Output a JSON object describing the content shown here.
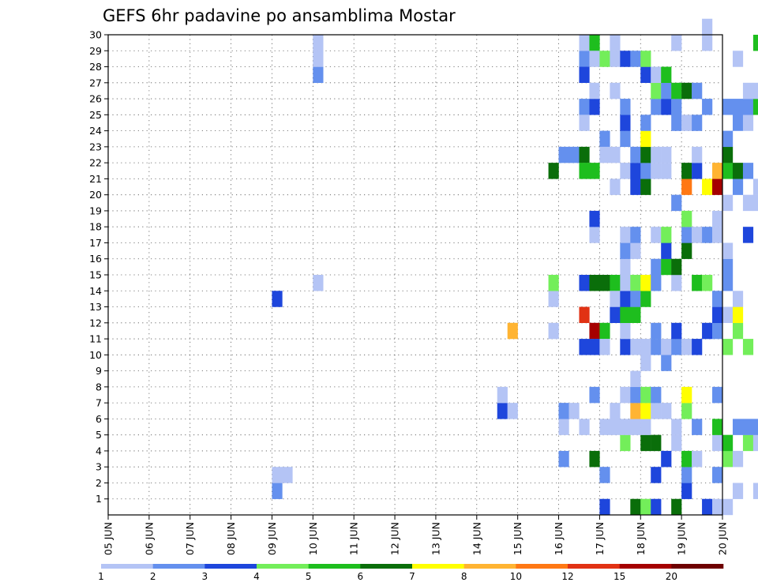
{
  "chart_data": {
    "type": "heatmap",
    "title": "GEFS 6hr padavine po ansamblima Mostar",
    "xlabel": "",
    "ylabel": "",
    "x_tick_labels": [
      "05 JUN",
      "06 JUN",
      "07 JUN",
      "08 JUN",
      "09 JUN",
      "10 JUN",
      "11 JUN",
      "12 JUN",
      "13 JUN",
      "14 JUN",
      "15 JUN",
      "16 JUN",
      "17 JUN",
      "18 JUN",
      "19 JUN",
      "20 JUN"
    ],
    "y_tick_labels": [
      "1",
      "2",
      "3",
      "4",
      "5",
      "6",
      "7",
      "8",
      "9",
      "10",
      "11",
      "12",
      "13",
      "14",
      "15",
      "16",
      "17",
      "18",
      "19",
      "20",
      "21",
      "22",
      "23",
      "24",
      "25",
      "26",
      "27",
      "28",
      "29",
      "30"
    ],
    "x_step_hours": 6,
    "ylim": [
      0,
      30
    ],
    "grid": true,
    "legend": {
      "placement": "bottom",
      "levels": [
        "1",
        "2",
        "3",
        "4",
        "5",
        "6",
        "7",
        "8",
        "10",
        "12",
        "15",
        "20"
      ],
      "colors": [
        "#b4c4f5",
        "#6490ee",
        "#1e46dc",
        "#73ee5a",
        "#1ebe1e",
        "#0a6e0a",
        "#ffff00",
        "#ffb432",
        "#ff7814",
        "#e13214",
        "#a50000",
        "#6e0000"
      ]
    },
    "cells": [
      [
        16,
        1,
        1
      ],
      [
        16,
        2,
        0
      ],
      [
        16,
        13,
        2
      ],
      [
        17,
        2,
        0
      ],
      [
        20,
        29,
        0
      ],
      [
        20,
        14,
        0
      ],
      [
        20,
        27,
        1
      ],
      [
        20,
        28,
        0
      ],
      [
        38,
        6,
        2
      ],
      [
        38,
        7,
        0
      ],
      [
        39,
        11,
        7
      ],
      [
        39,
        6,
        0
      ],
      [
        43,
        21,
        5
      ],
      [
        43,
        11,
        0
      ],
      [
        43,
        13,
        0
      ],
      [
        43,
        14,
        3
      ],
      [
        44,
        5,
        0
      ],
      [
        44,
        6,
        1
      ],
      [
        44,
        22,
        1
      ],
      [
        44,
        3,
        1
      ],
      [
        45,
        22,
        1
      ],
      [
        45,
        6,
        0
      ],
      [
        46,
        5,
        0
      ],
      [
        46,
        12,
        9
      ],
      [
        46,
        10,
        2
      ],
      [
        46,
        28,
        1
      ],
      [
        46,
        29,
        0
      ],
      [
        46,
        25,
        1
      ],
      [
        46,
        24,
        0
      ],
      [
        46,
        22,
        5
      ],
      [
        46,
        21,
        4
      ],
      [
        46,
        14,
        2
      ],
      [
        46,
        27,
        2
      ],
      [
        47,
        7,
        1
      ],
      [
        47,
        21,
        4
      ],
      [
        47,
        11,
        10
      ],
      [
        47,
        25,
        2
      ],
      [
        47,
        14,
        5
      ],
      [
        47,
        29,
        4
      ],
      [
        47,
        26,
        0
      ],
      [
        47,
        28,
        0
      ],
      [
        47,
        17,
        0
      ],
      [
        47,
        18,
        2
      ],
      [
        47,
        3,
        5
      ],
      [
        47,
        10,
        2
      ],
      [
        48,
        28,
        3
      ],
      [
        48,
        23,
        1
      ],
      [
        48,
        14,
        5
      ],
      [
        48,
        22,
        0
      ],
      [
        48,
        11,
        4
      ],
      [
        48,
        10,
        0
      ],
      [
        48,
        5,
        0
      ],
      [
        48,
        2,
        1
      ],
      [
        48,
        0,
        2
      ],
      [
        49,
        14,
        4
      ],
      [
        49,
        5,
        0
      ],
      [
        49,
        6,
        0
      ],
      [
        49,
        28,
        0
      ],
      [
        49,
        12,
        2
      ],
      [
        49,
        13,
        0
      ],
      [
        49,
        22,
        0
      ],
      [
        49,
        20,
        0
      ],
      [
        49,
        26,
        0
      ],
      [
        49,
        29,
        0
      ],
      [
        50,
        4,
        3
      ],
      [
        50,
        5,
        0
      ],
      [
        50,
        7,
        0
      ],
      [
        50,
        10,
        2
      ],
      [
        50,
        11,
        0
      ],
      [
        50,
        12,
        4
      ],
      [
        50,
        13,
        2
      ],
      [
        50,
        14,
        0
      ],
      [
        50,
        15,
        0
      ],
      [
        50,
        16,
        1
      ],
      [
        50,
        17,
        0
      ],
      [
        50,
        21,
        0
      ],
      [
        50,
        23,
        1
      ],
      [
        50,
        24,
        2
      ],
      [
        50,
        25,
        1
      ],
      [
        50,
        28,
        2
      ],
      [
        51,
        0,
        5
      ],
      [
        51,
        5,
        0
      ],
      [
        51,
        6,
        7
      ],
      [
        51,
        7,
        1
      ],
      [
        51,
        8,
        0
      ],
      [
        51,
        10,
        0
      ],
      [
        51,
        14,
        3
      ],
      [
        51,
        20,
        2
      ],
      [
        51,
        21,
        2
      ],
      [
        51,
        22,
        1
      ],
      [
        51,
        28,
        1
      ],
      [
        51,
        12,
        4
      ],
      [
        51,
        13,
        1
      ],
      [
        51,
        16,
        0
      ],
      [
        51,
        17,
        1
      ],
      [
        52,
        0,
        3
      ],
      [
        52,
        4,
        5
      ],
      [
        52,
        5,
        0
      ],
      [
        52,
        6,
        6
      ],
      [
        52,
        7,
        3
      ],
      [
        52,
        9,
        0
      ],
      [
        52,
        10,
        0
      ],
      [
        52,
        13,
        4
      ],
      [
        52,
        14,
        6
      ],
      [
        52,
        20,
        5
      ],
      [
        52,
        21,
        1
      ],
      [
        52,
        22,
        5
      ],
      [
        52,
        23,
        6
      ],
      [
        52,
        24,
        1
      ],
      [
        52,
        27,
        2
      ],
      [
        52,
        28,
        3
      ],
      [
        53,
        0,
        2
      ],
      [
        53,
        2,
        2
      ],
      [
        53,
        4,
        5
      ],
      [
        53,
        6,
        0
      ],
      [
        53,
        7,
        1
      ],
      [
        53,
        10,
        1
      ],
      [
        53,
        11,
        1
      ],
      [
        53,
        14,
        1
      ],
      [
        53,
        15,
        1
      ],
      [
        53,
        17,
        0
      ],
      [
        53,
        21,
        0
      ],
      [
        53,
        22,
        0
      ],
      [
        53,
        25,
        1
      ],
      [
        53,
        26,
        3
      ],
      [
        53,
        27,
        0
      ],
      [
        54,
        3,
        2
      ],
      [
        54,
        6,
        0
      ],
      [
        54,
        9,
        1
      ],
      [
        54,
        10,
        0
      ],
      [
        54,
        15,
        4
      ],
      [
        54,
        16,
        2
      ],
      [
        54,
        17,
        3
      ],
      [
        54,
        21,
        0
      ],
      [
        54,
        22,
        0
      ],
      [
        54,
        25,
        2
      ],
      [
        54,
        26,
        1
      ],
      [
        54,
        27,
        4
      ],
      [
        55,
        0,
        5
      ],
      [
        55,
        4,
        0
      ],
      [
        55,
        5,
        0
      ],
      [
        55,
        10,
        1
      ],
      [
        55,
        11,
        2
      ],
      [
        55,
        14,
        0
      ],
      [
        55,
        15,
        5
      ],
      [
        55,
        19,
        1
      ],
      [
        55,
        24,
        1
      ],
      [
        55,
        25,
        1
      ],
      [
        55,
        26,
        4
      ],
      [
        55,
        29,
        0
      ],
      [
        56,
        1,
        2
      ],
      [
        56,
        2,
        1
      ],
      [
        56,
        3,
        4
      ],
      [
        56,
        6,
        3
      ],
      [
        56,
        7,
        6
      ],
      [
        56,
        10,
        0
      ],
      [
        56,
        16,
        5
      ],
      [
        56,
        17,
        1
      ],
      [
        56,
        18,
        3
      ],
      [
        56,
        20,
        8
      ],
      [
        56,
        21,
        5
      ],
      [
        56,
        24,
        0
      ],
      [
        56,
        26,
        5
      ],
      [
        57,
        3,
        0
      ],
      [
        57,
        5,
        1
      ],
      [
        57,
        10,
        2
      ],
      [
        57,
        14,
        4
      ],
      [
        57,
        17,
        0
      ],
      [
        57,
        21,
        2
      ],
      [
        57,
        22,
        0
      ],
      [
        57,
        24,
        1
      ],
      [
        57,
        26,
        1
      ],
      [
        58,
        0,
        2
      ],
      [
        58,
        11,
        2
      ],
      [
        58,
        14,
        3
      ],
      [
        58,
        17,
        1
      ],
      [
        58,
        20,
        6
      ],
      [
        58,
        25,
        1
      ],
      [
        58,
        29,
        0
      ],
      [
        58,
        30,
        0
      ],
      [
        59,
        0,
        0
      ],
      [
        59,
        2,
        1
      ],
      [
        59,
        4,
        0
      ],
      [
        59,
        5,
        4
      ],
      [
        59,
        7,
        1
      ],
      [
        59,
        11,
        1
      ],
      [
        59,
        12,
        2
      ],
      [
        59,
        13,
        1
      ],
      [
        59,
        17,
        0
      ],
      [
        59,
        18,
        0
      ],
      [
        59,
        20,
        10
      ],
      [
        59,
        21,
        7
      ],
      [
        60,
        0,
        0
      ],
      [
        60,
        3,
        3
      ],
      [
        60,
        4,
        4
      ],
      [
        60,
        10,
        3
      ],
      [
        60,
        12,
        0
      ],
      [
        60,
        14,
        1
      ],
      [
        60,
        15,
        1
      ],
      [
        60,
        16,
        0
      ],
      [
        60,
        19,
        0
      ],
      [
        60,
        21,
        4
      ],
      [
        60,
        22,
        5
      ],
      [
        60,
        23,
        1
      ],
      [
        60,
        25,
        1
      ],
      [
        61,
        1,
        0
      ],
      [
        61,
        3,
        0
      ],
      [
        61,
        5,
        1
      ],
      [
        61,
        11,
        3
      ],
      [
        61,
        12,
        6
      ],
      [
        61,
        13,
        0
      ],
      [
        61,
        20,
        1
      ],
      [
        61,
        21,
        5
      ],
      [
        61,
        28,
        0
      ],
      [
        61,
        24,
        1
      ],
      [
        61,
        25,
        1
      ],
      [
        62,
        4,
        3
      ],
      [
        62,
        5,
        1
      ],
      [
        62,
        10,
        3
      ],
      [
        62,
        17,
        2
      ],
      [
        62,
        19,
        0
      ],
      [
        62,
        21,
        1
      ],
      [
        62,
        24,
        0
      ],
      [
        62,
        25,
        1
      ],
      [
        62,
        26,
        0
      ],
      [
        63,
        1,
        0
      ],
      [
        63,
        4,
        0
      ],
      [
        63,
        5,
        1
      ],
      [
        63,
        19,
        0
      ],
      [
        63,
        20,
        0
      ],
      [
        63,
        25,
        4
      ],
      [
        63,
        26,
        0
      ],
      [
        63,
        29,
        4
      ],
      [
        64,
        3,
        4
      ],
      [
        64,
        7,
        0
      ],
      [
        64,
        10,
        1
      ],
      [
        64,
        11,
        0
      ],
      [
        64,
        14,
        0
      ],
      [
        64,
        25,
        0
      ],
      [
        64,
        26,
        1
      ],
      [
        65,
        4,
        0
      ],
      [
        65,
        5,
        1
      ],
      [
        65,
        9,
        2
      ],
      [
        65,
        10,
        9
      ],
      [
        65,
        13,
        1
      ],
      [
        65,
        16,
        1
      ],
      [
        65,
        22,
        0
      ],
      [
        65,
        24,
        0
      ],
      [
        65,
        25,
        1
      ],
      [
        65,
        27,
        0
      ],
      [
        65,
        29,
        2
      ],
      [
        66,
        3,
        2
      ],
      [
        66,
        5,
        1
      ],
      [
        66,
        10,
        2
      ],
      [
        66,
        12,
        2
      ],
      [
        66,
        14,
        1
      ],
      [
        66,
        21,
        1
      ],
      [
        66,
        24,
        0
      ],
      [
        66,
        27,
        4
      ],
      [
        66,
        28,
        3
      ],
      [
        66,
        29,
        4
      ],
      [
        67,
        0,
        0
      ],
      [
        67,
        1,
        0
      ],
      [
        67,
        4,
        2
      ],
      [
        67,
        5,
        0
      ],
      [
        67,
        14,
        0
      ],
      [
        67,
        22,
        2
      ],
      [
        67,
        26,
        0
      ],
      [
        67,
        27,
        3
      ],
      [
        67,
        28,
        2
      ],
      [
        67,
        29,
        3
      ],
      [
        67,
        11,
        1
      ],
      [
        68,
        0,
        0
      ],
      [
        68,
        8,
        3
      ],
      [
        68,
        9,
        1
      ],
      [
        68,
        10,
        5
      ],
      [
        68,
        12,
        3
      ],
      [
        68,
        21,
        9
      ],
      [
        68,
        24,
        5
      ],
      [
        68,
        26,
        5
      ],
      [
        68,
        30,
        6
      ],
      [
        69,
        0,
        1
      ],
      [
        69,
        1,
        0
      ],
      [
        69,
        3,
        4
      ],
      [
        69,
        4,
        0
      ],
      [
        69,
        5,
        1
      ],
      [
        69,
        7,
        0
      ],
      [
        69,
        10,
        2
      ],
      [
        69,
        14,
        0
      ],
      [
        69,
        17,
        0
      ],
      [
        69,
        19,
        1
      ],
      [
        69,
        24,
        0
      ],
      [
        69,
        25,
        1
      ],
      [
        69,
        27,
        2
      ],
      [
        69,
        28,
        0
      ],
      [
        69,
        29,
        1
      ],
      [
        70,
        0,
        0
      ],
      [
        70,
        10,
        0
      ],
      [
        70,
        14,
        3
      ],
      [
        70,
        15,
        2
      ],
      [
        70,
        16,
        3
      ],
      [
        70,
        18,
        2
      ],
      [
        70,
        21,
        1
      ],
      [
        70,
        24,
        0
      ],
      [
        70,
        28,
        1
      ],
      [
        70,
        29,
        6
      ],
      [
        71,
        0,
        5
      ],
      [
        71,
        3,
        1
      ],
      [
        71,
        6,
        1
      ],
      [
        71,
        9,
        0
      ],
      [
        71,
        10,
        1
      ],
      [
        71,
        21,
        0
      ],
      [
        71,
        22,
        2
      ],
      [
        71,
        23,
        0
      ],
      [
        71,
        24,
        1
      ],
      [
        71,
        25,
        1
      ],
      [
        71,
        26,
        0
      ],
      [
        71,
        27,
        0
      ],
      [
        71,
        28,
        2
      ],
      [
        71,
        29,
        0
      ],
      [
        71,
        30,
        3
      ]
    ]
  }
}
